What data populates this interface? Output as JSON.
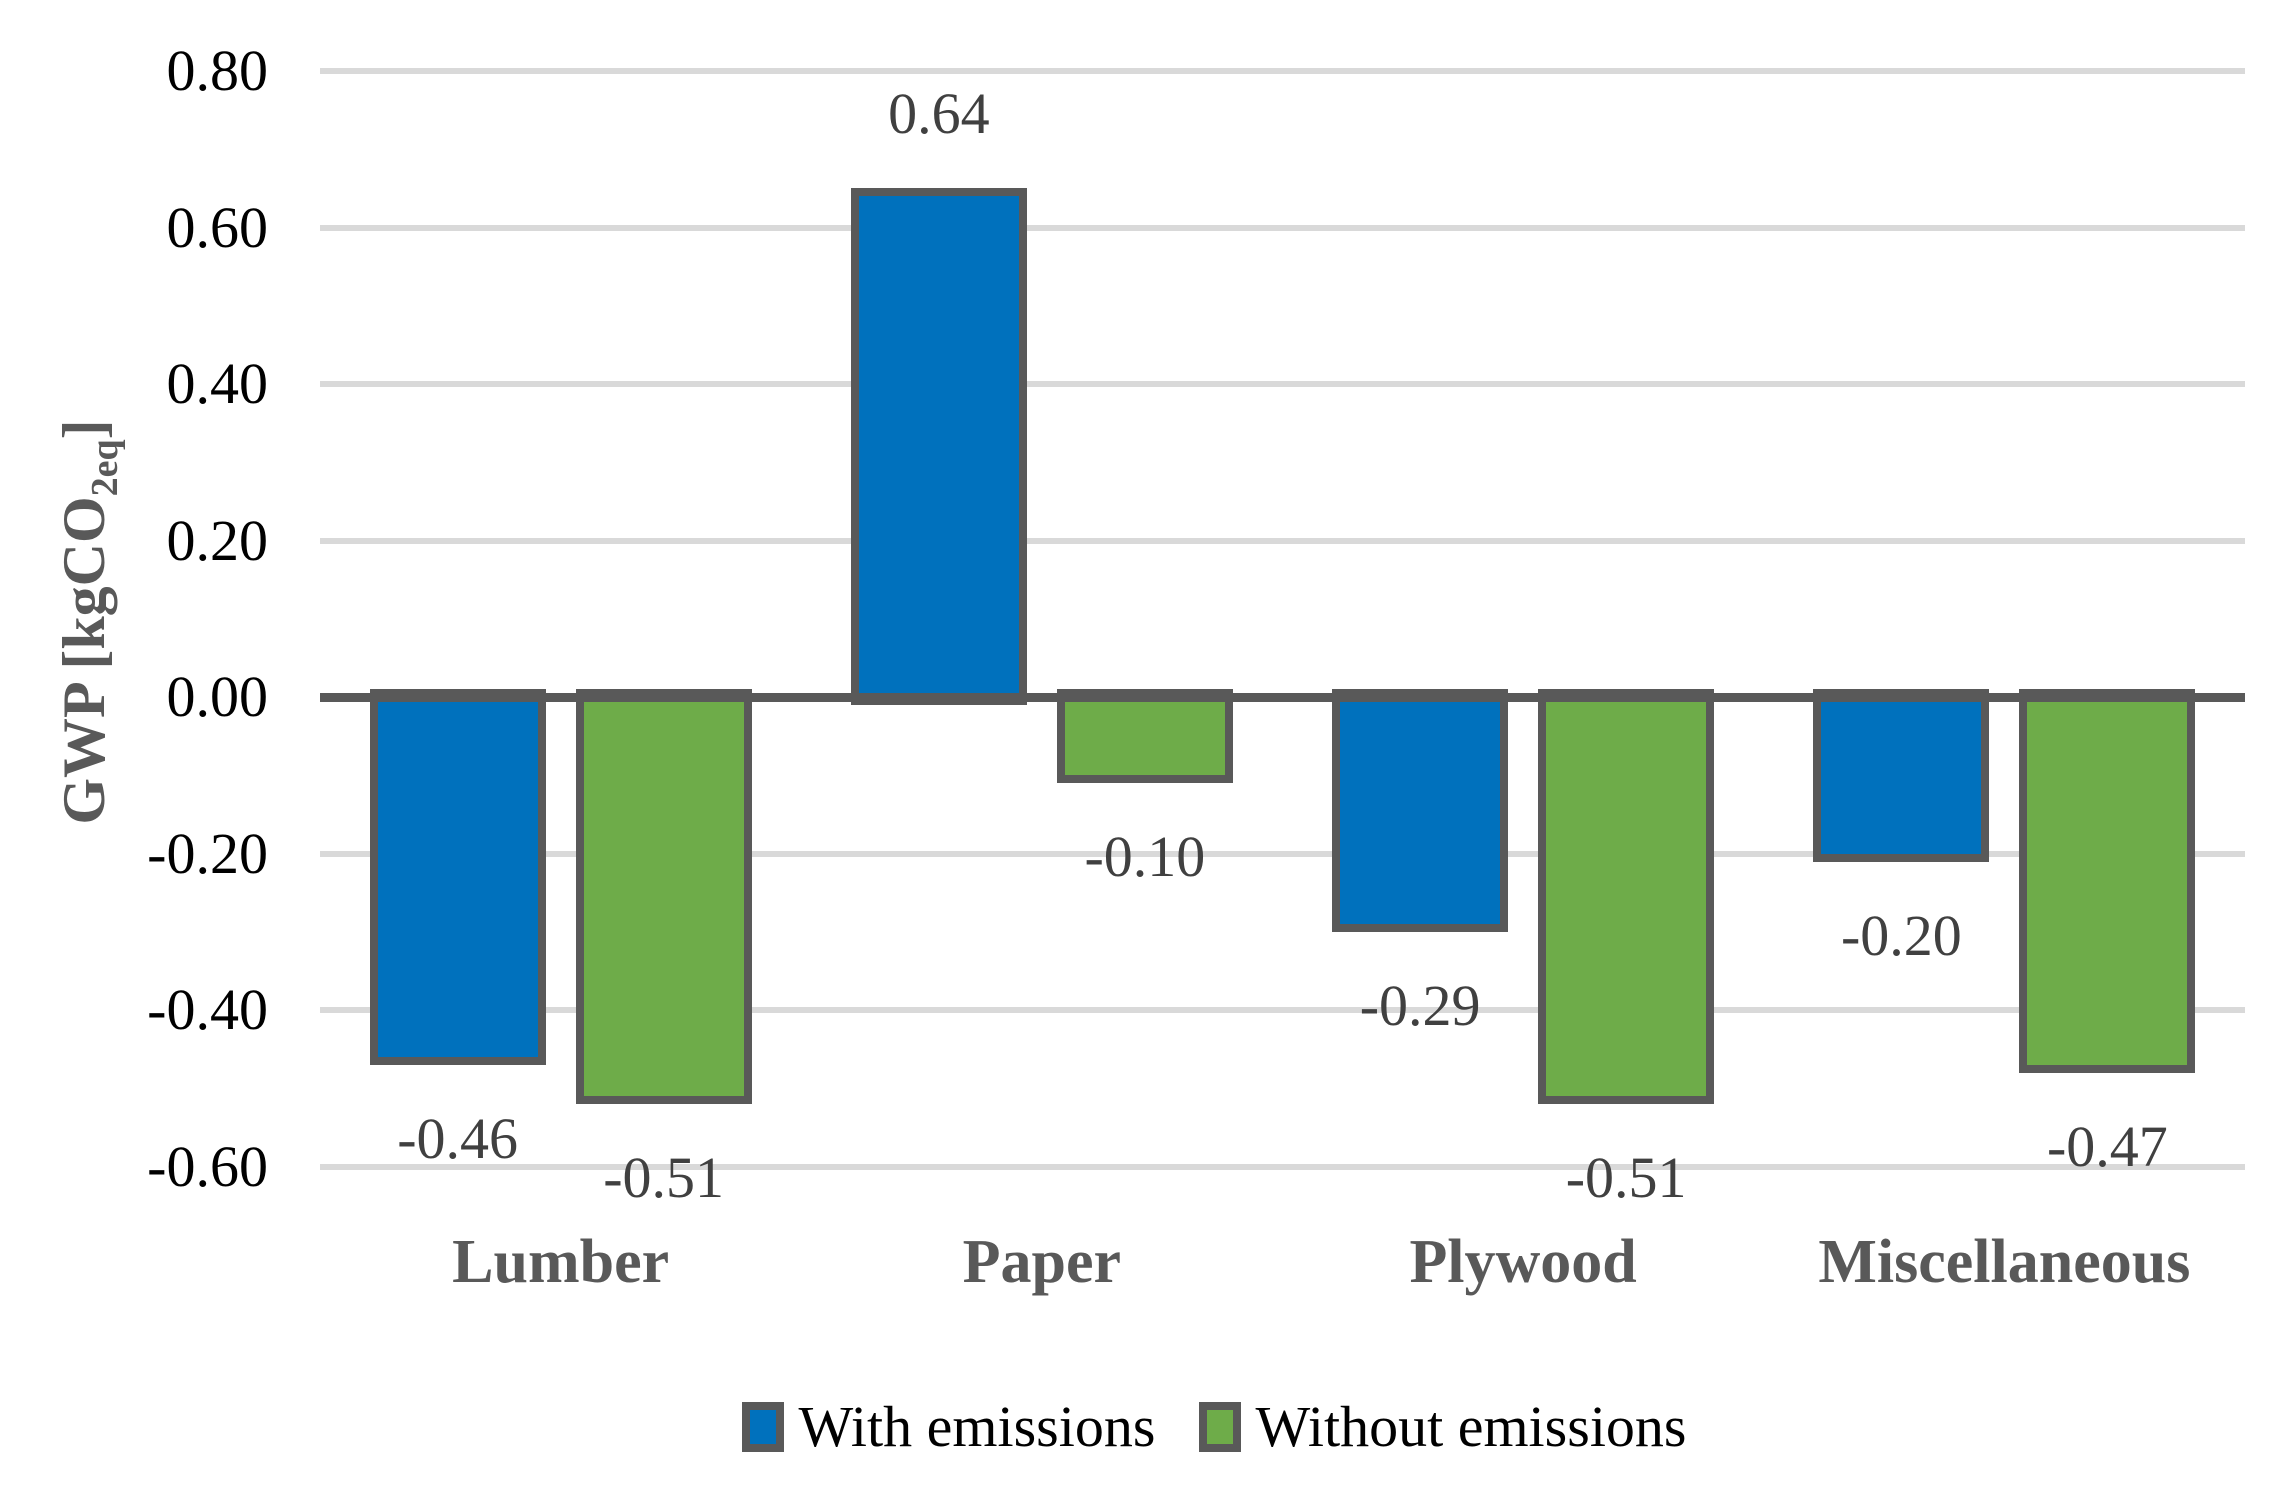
{
  "chart_data": {
    "type": "bar",
    "title": "",
    "categories": [
      "Lumber",
      "Paper",
      "Plywood",
      "Miscellaneous"
    ],
    "series": [
      {
        "name": "With emissions",
        "color": "#0071BD",
        "values": [
          -0.46,
          0.64,
          -0.29,
          -0.2
        ],
        "labels": [
          "-0.46",
          "0.64",
          "-0.29",
          "-0.20"
        ]
      },
      {
        "name": "Without emissions",
        "color": "#6EAC49",
        "values": [
          -0.51,
          -0.1,
          -0.51,
          -0.47
        ],
        "labels": [
          "-0.51",
          "-0.10",
          "-0.51",
          "-0.47"
        ]
      }
    ],
    "xlabel": "",
    "ylabel": "GWP [kgCO2eq]",
    "ylabel_parts": {
      "prefix": "GWP [kgCO",
      "sub": "2eq",
      "suffix": "]"
    },
    "yticks": [
      0.8,
      0.6,
      0.4,
      0.2,
      0.0,
      -0.2,
      -0.4,
      -0.6
    ],
    "ytick_labels": [
      "0.80",
      "0.60",
      "0.40",
      "0.20",
      "0.00",
      "-0.20",
      "-0.40",
      "-0.60"
    ],
    "ylim": [
      -0.6,
      0.8
    ],
    "grid": true,
    "legend_position": "bottom",
    "colors": {
      "bar_border": "#595959",
      "gridline": "#D9D9D9",
      "axis_line": "#595959",
      "tick_label": "#000000",
      "data_label": "#404040",
      "category_label": "#595959",
      "axis_title": "#595959",
      "legend_text": "#000000",
      "background": "#FFFFFF"
    }
  }
}
